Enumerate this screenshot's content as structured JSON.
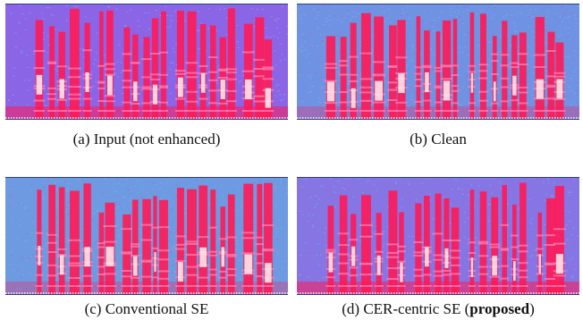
{
  "figures": [
    {
      "id": "a",
      "caption_prefix": "(a) Input (not enhanced)",
      "caption_bold": "",
      "caption_suffix": "",
      "background": "#8a66e6"
    },
    {
      "id": "b",
      "caption_prefix": "(b) Clean",
      "caption_bold": "",
      "caption_suffix": "",
      "background": "#6f93e2"
    },
    {
      "id": "c",
      "caption_prefix": "(c) Conventional SE",
      "caption_bold": "",
      "caption_suffix": "",
      "background": "#6d9ae0"
    },
    {
      "id": "d",
      "caption_prefix": "(d) CER-centric SE (",
      "caption_bold": "proposed",
      "caption_suffix": ")",
      "background": "#8576e4"
    }
  ],
  "colors": {
    "energy_high": "#ff1a55",
    "energy_peak": "#fff0f0",
    "harmonic_band": "#ff7ab0",
    "frame": "#2a3d8f"
  }
}
